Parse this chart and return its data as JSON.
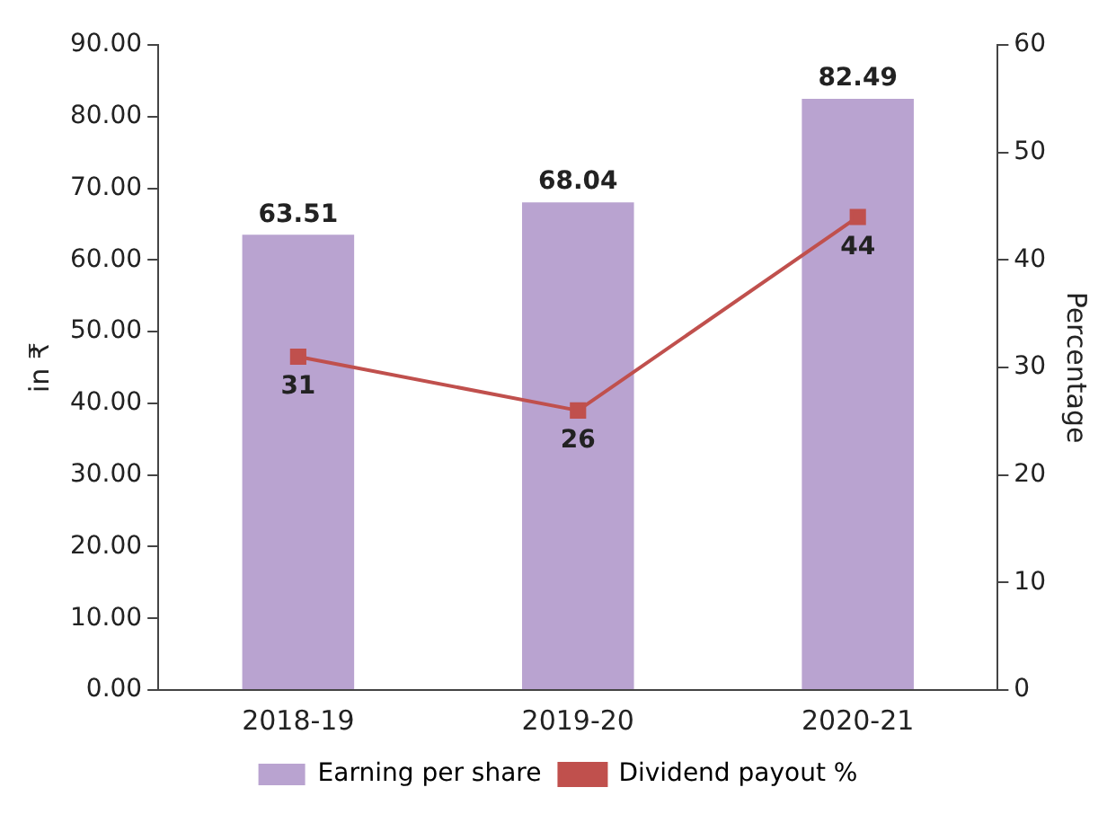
{
  "chart_data": {
    "type": "bar",
    "categories": [
      "2018-19",
      "2019-20",
      "2020-21"
    ],
    "series": [
      {
        "name": "Earning per share",
        "color": "#b9a3d0",
        "values": [
          63.51,
          68.04,
          82.49
        ]
      },
      {
        "name": "Dividend payout %",
        "type": "line",
        "axis": "y2",
        "color": "#c0504d",
        "values": [
          31,
          26,
          44
        ],
        "marker": "square",
        "line_style": "solid"
      }
    ],
    "ylabel": "in ₹",
    "y2label": "Percentage",
    "ylim": [
      0,
      90
    ],
    "yticks": [
      {
        "value": 0,
        "label": "0.00"
      },
      {
        "value": 10,
        "label": "10.00"
      },
      {
        "value": 20,
        "label": "20.00"
      },
      {
        "value": 30,
        "label": "30.00"
      },
      {
        "value": 40,
        "label": "40.00"
      },
      {
        "value": 50,
        "label": "50.00"
      },
      {
        "value": 60,
        "label": "60.00"
      },
      {
        "value": 70,
        "label": "70.00"
      },
      {
        "value": 80,
        "label": "80.00"
      },
      {
        "value": 90,
        "label": "90.00"
      }
    ],
    "y2lim": [
      0,
      60
    ],
    "y2ticks": [
      0,
      10,
      20,
      30,
      40,
      50,
      60
    ],
    "data_labels": true,
    "grid": false,
    "legend": "bottom"
  }
}
